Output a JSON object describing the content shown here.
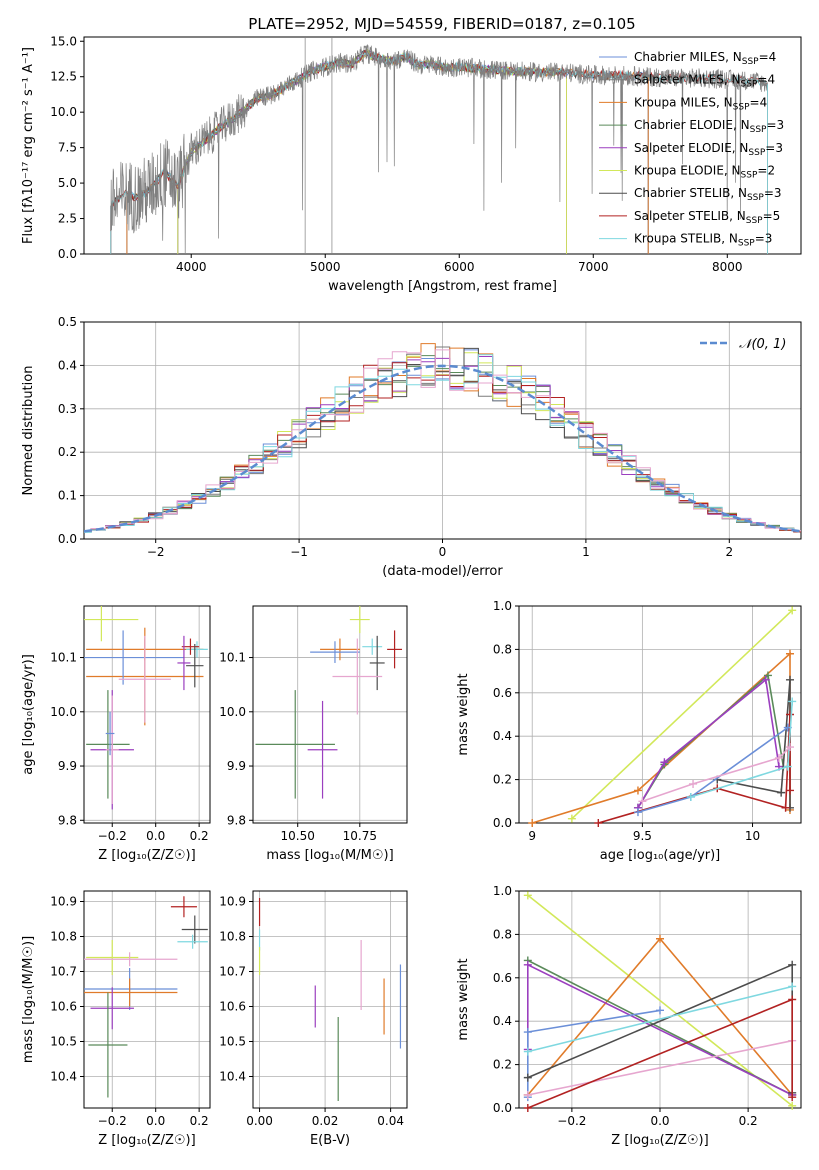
{
  "figure": {
    "title": "PLATE=2952, MJD=54559, FIBERID=0187, z=0.105"
  },
  "chart_data": [
    {
      "id": "spectrum",
      "type": "line",
      "xlabel": "wavelength [Angstrom, rest frame]",
      "ylabel": "Flux [fλ10⁻¹⁷ erg cm⁻² s⁻¹ A⁻¹]",
      "xlim": [
        3200,
        8550
      ],
      "ylim": [
        0,
        15.3
      ],
      "xticks": [
        4000,
        5000,
        6000,
        7000,
        8000
      ],
      "yticks": [
        0.0,
        2.5,
        5.0,
        7.5,
        10.0,
        12.5,
        15.0
      ],
      "data_curve": {
        "color": "#808080",
        "x": [
          3400,
          3500,
          3600,
          3700,
          3800,
          3900,
          4000,
          4100,
          4200,
          4300,
          4400,
          4500,
          4600,
          4700,
          4800,
          4900,
          5000,
          5100,
          5200,
          5300,
          5400,
          5500,
          5600,
          5700,
          5800,
          5900,
          6000,
          6200,
          6400,
          6600,
          6800,
          7000,
          7200,
          7400,
          7600,
          7800,
          8000,
          8200,
          8300
        ],
        "y": [
          3.4,
          4.2,
          4.0,
          4.6,
          5.8,
          4.8,
          7.2,
          8.0,
          8.8,
          9.5,
          10.2,
          11.0,
          11.2,
          11.8,
          12.3,
          12.9,
          13.2,
          13.5,
          13.4,
          14.2,
          13.8,
          13.6,
          13.9,
          13.3,
          13.4,
          13.1,
          13.2,
          13.0,
          12.9,
          12.8,
          12.8,
          12.6,
          12.6,
          12.5,
          12.4,
          12.4,
          12.3,
          12.2,
          12.0
        ]
      },
      "series": [
        {
          "name": "Chabrier MILES, N_SSP=4",
          "color": "#6b8fd8",
          "xmin": 3520,
          "xmax": 7410
        },
        {
          "name": "Salpeter MILES, N_SSP=4",
          "color": "#7b7b7b",
          "xmin": 3520,
          "xmax": 7410
        },
        {
          "name": "Kroupa MILES, N_SSP=4",
          "color": "#e07b2a",
          "xmin": 3520,
          "xmax": 7410
        },
        {
          "name": "Chabrier ELODIE, N_SSP=3",
          "color": "#5a8a5a",
          "xmin": 3900,
          "xmax": 6800
        },
        {
          "name": "Salpeter ELODIE, N_SSP=3",
          "color": "#9b3fbf",
          "xmin": 3900,
          "xmax": 6800
        },
        {
          "name": "Kroupa ELODIE, N_SSP=2",
          "color": "#d2e85a",
          "xmin": 3900,
          "xmax": 6800
        },
        {
          "name": "Chabrier STELIB, N_SSP=3",
          "color": "#4d4d4d",
          "xmin": 3400,
          "xmax": 8300
        },
        {
          "name": "Salpeter STELIB, N_SSP=5",
          "color": "#b22222",
          "xmin": 3400,
          "xmax": 8300
        },
        {
          "name": "Kroupa STELIB, N_SSP=3",
          "color": "#7fd8e0",
          "xmin": 3400,
          "xmax": 8300
        }
      ],
      "legend_position": "right"
    },
    {
      "id": "residuals",
      "type": "line",
      "xlabel": "(data-model)/error",
      "ylabel": "Normed distribution",
      "xlim": [
        -2.5,
        2.5
      ],
      "ylim": [
        0,
        0.5
      ],
      "xticks": [
        -2,
        -1,
        0,
        1,
        2
      ],
      "yticks": [
        0.0,
        0.1,
        0.2,
        0.3,
        0.4,
        0.5
      ],
      "legend": "𝒩(0, 1)",
      "legend_position": "top-right",
      "grid": true
    },
    {
      "id": "age-vs-Z",
      "type": "scatter",
      "xlabel": "Z [log₁₀(Z/Z☉)]",
      "ylabel": "age  [log₁₀(age/yr)]",
      "xlim": [
        -0.33,
        0.25
      ],
      "ylim": [
        9.795,
        10.195
      ],
      "xticks": [
        -0.2,
        0.0,
        0.2
      ],
      "xtick_labels": [
        "−0.2",
        "0.0",
        "0.2"
      ],
      "yticks": [
        9.8,
        9.9,
        10.0,
        10.1
      ],
      "grid": true,
      "points": [
        {
          "x": -0.25,
          "y": 10.17,
          "xerr": 0.17,
          "yerr": 0.04,
          "color": "#d2e85a"
        },
        {
          "x": -0.05,
          "y": 10.115,
          "xerr": 0.27,
          "yerr": 0.02,
          "color": "#e07b2a"
        },
        {
          "x": 0.19,
          "y": 10.115,
          "xerr": 0.05,
          "yerr": 0.015,
          "color": "#7fd8e0"
        },
        {
          "x": 0.16,
          "y": 10.12,
          "xerr": 0.04,
          "yerr": 0.015,
          "color": "#b22222"
        },
        {
          "x": -0.05,
          "y": 10.065,
          "xerr": 0.27,
          "yerr": 0.09,
          "color": "#e07b2a"
        },
        {
          "x": -0.15,
          "y": 10.1,
          "xerr": 0.28,
          "yerr": 0.05,
          "color": "#6b8fd8"
        },
        {
          "x": 0.13,
          "y": 10.09,
          "xerr": 0.03,
          "yerr": 0.05,
          "color": "#9b3fbf"
        },
        {
          "x": 0.18,
          "y": 10.085,
          "xerr": 0.04,
          "yerr": 0.04,
          "color": "#4d4d4d"
        },
        {
          "x": -0.05,
          "y": 10.06,
          "xerr": 0.12,
          "yerr": 0.08,
          "color": "#e6a6cf"
        },
        {
          "x": -0.22,
          "y": 9.94,
          "xerr": 0.1,
          "yerr": 0.1,
          "color": "#5a8a5a"
        },
        {
          "x": -0.2,
          "y": 9.93,
          "xerr": 0.1,
          "yerr": 0.11,
          "color": "#9b3fbf"
        },
        {
          "x": -0.2,
          "y": 9.93,
          "xerr": 0.03,
          "yerr": 0.1,
          "color": "#e6a6cf"
        },
        {
          "x": -0.21,
          "y": 9.96,
          "xerr": 0.02,
          "yerr": 0.04,
          "color": "#6b8fd8"
        }
      ]
    },
    {
      "id": "age-vs-mass",
      "type": "scatter",
      "xlabel": "mass [log₁₀(M/M☉)]",
      "ylabel": "",
      "xlim": [
        10.32,
        10.94
      ],
      "ylim": [
        9.795,
        10.195
      ],
      "xticks": [
        10.5,
        10.75
      ],
      "xtick_labels": [
        "10.50",
        "10.75"
      ],
      "yticks": [
        9.8,
        9.9,
        10.0,
        10.1
      ],
      "grid": true,
      "points": [
        {
          "x": 10.75,
          "y": 10.17,
          "xerr": 0.04,
          "yerr": 0.025,
          "color": "#d2e85a"
        },
        {
          "x": 10.67,
          "y": 10.115,
          "xerr": 0.08,
          "yerr": 0.02,
          "color": "#e07b2a"
        },
        {
          "x": 10.8,
          "y": 10.12,
          "xerr": 0.04,
          "yerr": 0.015,
          "color": "#7fd8e0"
        },
        {
          "x": 10.89,
          "y": 10.115,
          "xerr": 0.03,
          "yerr": 0.035,
          "color": "#b22222"
        },
        {
          "x": 10.82,
          "y": 10.09,
          "xerr": 0.03,
          "yerr": 0.05,
          "color": "#4d4d4d"
        },
        {
          "x": 10.65,
          "y": 10.11,
          "xerr": 0.1,
          "yerr": 0.02,
          "color": "#6b8fd8"
        },
        {
          "x": 10.74,
          "y": 10.065,
          "xerr": 0.1,
          "yerr": 0.07,
          "color": "#e6a6cf"
        },
        {
          "x": 10.49,
          "y": 9.94,
          "xerr": 0.16,
          "yerr": 0.1,
          "color": "#5a8a5a"
        },
        {
          "x": 10.6,
          "y": 9.93,
          "xerr": 0.06,
          "yerr": 0.09,
          "color": "#9b3fbf"
        }
      ]
    },
    {
      "id": "weight-vs-age",
      "type": "line",
      "xlabel": "age  [log₁₀(age/yr)]",
      "ylabel": "mass weight",
      "xlim": [
        8.94,
        10.22
      ],
      "ylim": [
        0,
        1.0
      ],
      "xticks": [
        9.0,
        9.5,
        10.0
      ],
      "yticks": [
        0.0,
        0.2,
        0.4,
        0.6,
        0.8,
        1.0
      ],
      "grid": true,
      "series": [
        {
          "color": "#d2e85a",
          "x": [
            9.18,
            10.18
          ],
          "y": [
            0.02,
            0.98
          ]
        },
        {
          "color": "#e07b2a",
          "x": [
            9.0,
            9.48,
            10.17,
            10.17
          ],
          "y": [
            0.0,
            0.15,
            0.78,
            0.06
          ]
        },
        {
          "color": "#5a8a5a",
          "x": [
            9.48,
            9.6,
            10.07,
            10.14
          ],
          "y": [
            0.07,
            0.27,
            0.68,
            0.26
          ]
        },
        {
          "color": "#9b3fbf",
          "x": [
            9.48,
            9.6,
            10.06,
            10.12
          ],
          "y": [
            0.07,
            0.28,
            0.66,
            0.26
          ]
        },
        {
          "color": "#4d4d4d",
          "x": [
            9.84,
            10.13,
            10.17,
            10.17
          ],
          "y": [
            0.2,
            0.14,
            0.66,
            0.07
          ]
        },
        {
          "color": "#b22222",
          "x": [
            9.3,
            9.84,
            10.15,
            10.17,
            10.17
          ],
          "y": [
            0.0,
            0.16,
            0.07,
            0.5,
            0.15
          ]
        },
        {
          "color": "#6b8fd8",
          "x": [
            9.48,
            9.72,
            10.16
          ],
          "y": [
            0.05,
            0.12,
            0.44
          ]
        },
        {
          "color": "#7fd8e0",
          "x": [
            9.72,
            10.16,
            10.18
          ],
          "y": [
            0.12,
            0.26,
            0.56
          ]
        },
        {
          "color": "#e6a6cf",
          "x": [
            9.5,
            9.73,
            10.12,
            10.17
          ],
          "y": [
            0.1,
            0.18,
            0.3,
            0.35
          ]
        }
      ]
    },
    {
      "id": "mass-vs-Z",
      "type": "scatter",
      "xlabel": "Z [log₁₀(Z/Z☉)]",
      "ylabel": "mass [log₁₀(M/M☉)]",
      "xlim": [
        -0.33,
        0.25
      ],
      "ylim": [
        10.31,
        10.93
      ],
      "xticks": [
        -0.2,
        0.0,
        0.2
      ],
      "xtick_labels": [
        "−0.2",
        "0.0",
        "0.2"
      ],
      "yticks": [
        10.4,
        10.5,
        10.6,
        10.7,
        10.8,
        10.9
      ],
      "grid": true,
      "points": [
        {
          "x": 0.13,
          "y": 10.885,
          "xerr": 0.06,
          "yerr": 0.03,
          "color": "#b22222"
        },
        {
          "x": 0.18,
          "y": 10.82,
          "xerr": 0.06,
          "yerr": 0.04,
          "color": "#4d4d4d"
        },
        {
          "x": 0.17,
          "y": 10.785,
          "xerr": 0.07,
          "yerr": 0.02,
          "color": "#7fd8e0"
        },
        {
          "x": -0.2,
          "y": 10.74,
          "xerr": 0.12,
          "yerr": 0.05,
          "color": "#d2e85a"
        },
        {
          "x": -0.12,
          "y": 10.735,
          "xerr": 0.22,
          "yerr": 0.02,
          "color": "#e6a6cf"
        },
        {
          "x": -0.12,
          "y": 10.65,
          "xerr": 0.22,
          "yerr": 0.06,
          "color": "#6b8fd8"
        },
        {
          "x": -0.12,
          "y": 10.64,
          "xerr": 0.22,
          "yerr": 0.04,
          "color": "#e07b2a"
        },
        {
          "x": -0.2,
          "y": 10.595,
          "xerr": 0.1,
          "yerr": 0.06,
          "color": "#9b3fbf"
        },
        {
          "x": -0.22,
          "y": 10.49,
          "xerr": 0.09,
          "yerr": 0.15,
          "color": "#5a8a5a"
        }
      ]
    },
    {
      "id": "mass-vs-ebv",
      "type": "scatter",
      "xlabel": "E(B-V)",
      "ylabel": "",
      "xlim": [
        -0.002,
        0.045
      ],
      "ylim": [
        10.31,
        10.93
      ],
      "xticks": [
        0.0,
        0.02,
        0.04
      ],
      "xtick_labels": [
        "0.00",
        "0.02",
        "0.04"
      ],
      "yticks": [
        10.4,
        10.5,
        10.6,
        10.7,
        10.8,
        10.9
      ],
      "grid": true,
      "points": [
        {
          "x": 0.0,
          "y": 10.87,
          "xerr": 0,
          "yerr": 0.04,
          "color": "#b22222"
        },
        {
          "x": 0.0,
          "y": 10.79,
          "xerr": 0,
          "yerr": 0.03,
          "color": "#7fd8e0"
        },
        {
          "x": 0.0,
          "y": 10.73,
          "xerr": 0,
          "yerr": 0.04,
          "color": "#d2e85a"
        },
        {
          "x": 0.017,
          "y": 10.6,
          "xerr": 0,
          "yerr": 0.06,
          "color": "#9b3fbf"
        },
        {
          "x": 0.024,
          "y": 10.45,
          "xerr": 0,
          "yerr": 0.12,
          "color": "#5a8a5a"
        },
        {
          "x": 0.031,
          "y": 10.69,
          "xerr": 0,
          "yerr": 0.1,
          "color": "#e6a6cf"
        },
        {
          "x": 0.038,
          "y": 10.6,
          "xerr": 0,
          "yerr": 0.08,
          "color": "#e07b2a"
        },
        {
          "x": 0.043,
          "y": 10.6,
          "xerr": 0,
          "yerr": 0.12,
          "color": "#6b8fd8"
        }
      ]
    },
    {
      "id": "weight-vs-Z",
      "type": "line",
      "xlabel": "Z [log₁₀(Z/Z☉)]",
      "ylabel": "mass weight",
      "xlim": [
        -0.32,
        0.32
      ],
      "ylim": [
        0,
        1.0
      ],
      "xticks": [
        -0.2,
        0.0,
        0.2
      ],
      "xtick_labels": [
        "−0.2",
        "0.0",
        "0.2"
      ],
      "yticks": [
        0.0,
        0.2,
        0.4,
        0.6,
        0.8,
        1.0
      ],
      "grid": true,
      "series": [
        {
          "color": "#d2e85a",
          "x": [
            -0.3,
            0.3
          ],
          "y": [
            0.98,
            0.01
          ]
        },
        {
          "color": "#e07b2a",
          "x": [
            -0.3,
            0.0,
            0.3
          ],
          "y": [
            0.06,
            0.78,
            0.06
          ]
        },
        {
          "color": "#5a8a5a",
          "x": [
            -0.3,
            0.3
          ],
          "y": [
            0.68,
            0.06
          ]
        },
        {
          "color": "#9b3fbf",
          "x": [
            -0.3,
            -0.3,
            0.3
          ],
          "y": [
            0.27,
            0.66,
            0.06
          ]
        },
        {
          "color": "#6b8fd8",
          "x": [
            -0.3,
            -0.3,
            0.0
          ],
          "y": [
            0.05,
            0.35,
            0.45
          ]
        },
        {
          "color": "#4d4d4d",
          "x": [
            -0.3,
            0.3,
            0.3
          ],
          "y": [
            0.14,
            0.66,
            0.07
          ]
        },
        {
          "color": "#7fd8e0",
          "x": [
            -0.3,
            0.3
          ],
          "y": [
            0.26,
            0.56
          ]
        },
        {
          "color": "#e6a6cf",
          "x": [
            -0.3,
            0.3
          ],
          "y": [
            0.06,
            0.31
          ]
        },
        {
          "color": "#b22222",
          "x": [
            -0.3,
            0.3,
            0.3
          ],
          "y": [
            0.0,
            0.5,
            0.05
          ]
        }
      ]
    }
  ]
}
